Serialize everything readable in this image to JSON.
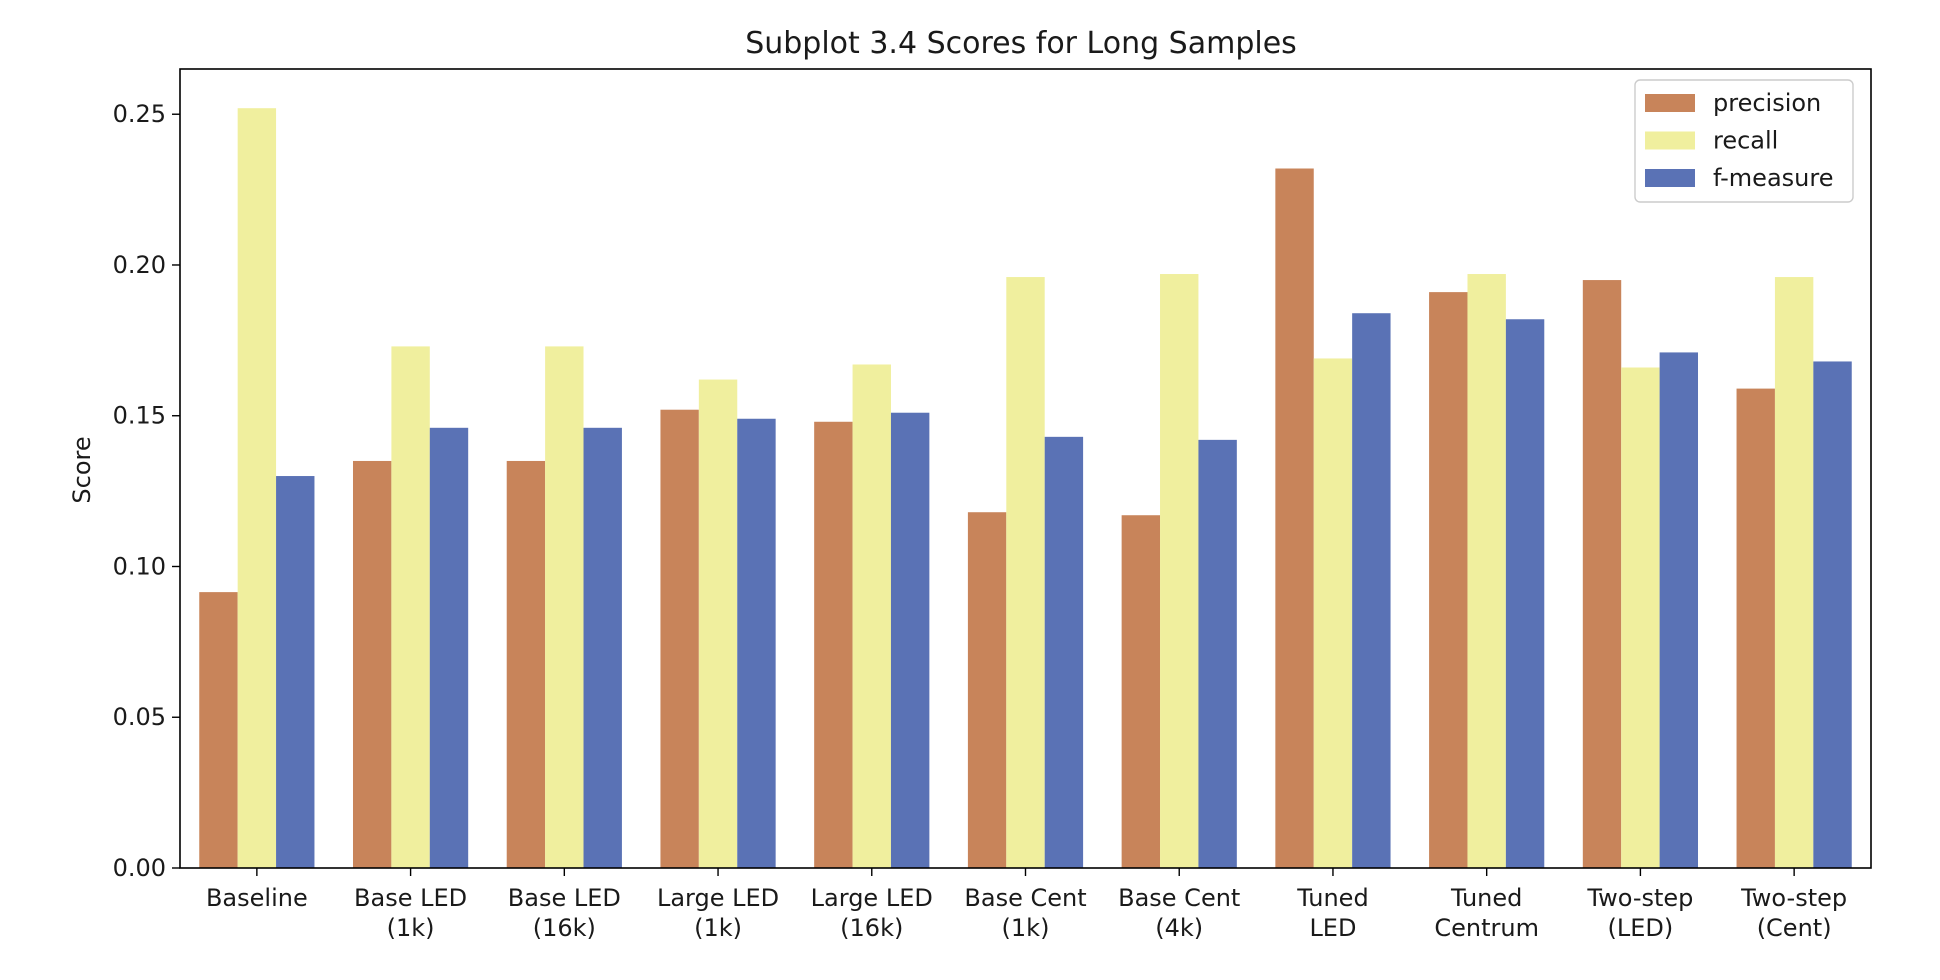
{
  "chart_data": {
    "type": "bar",
    "title": "Subplot 3.4 Scores for Long Samples",
    "xlabel": "",
    "ylabel": "Score",
    "ylim": [
      0,
      0.265
    ],
    "yticks": [
      0.0,
      0.05,
      0.1,
      0.15,
      0.2,
      0.25
    ],
    "ytick_labels": [
      "0.00",
      "0.05",
      "0.10",
      "0.15",
      "0.20",
      "0.25"
    ],
    "grid": false,
    "legend_position": "top-right",
    "categories": [
      [
        "Baseline"
      ],
      [
        "Base LED",
        "(1k)"
      ],
      [
        "Base LED",
        "(16k)"
      ],
      [
        "Large LED",
        "(1k)"
      ],
      [
        "Large LED",
        "(16k)"
      ],
      [
        "Base Cent",
        "(1k)"
      ],
      [
        "Base Cent",
        "(4k)"
      ],
      [
        "Tuned",
        "LED"
      ],
      [
        "Tuned",
        "Centrum"
      ],
      [
        "Two-step",
        "(LED)"
      ],
      [
        "Two-step",
        "(Cent)"
      ]
    ],
    "series": [
      {
        "name": "precision",
        "color": "#c8845a",
        "values": [
          0.0915,
          0.135,
          0.135,
          0.152,
          0.148,
          0.118,
          0.117,
          0.232,
          0.191,
          0.195,
          0.159
        ]
      },
      {
        "name": "recall",
        "color": "#f0ef9e",
        "values": [
          0.252,
          0.173,
          0.173,
          0.162,
          0.167,
          0.196,
          0.197,
          0.169,
          0.197,
          0.166,
          0.196
        ]
      },
      {
        "name": "f-measure",
        "color": "#5a72b5",
        "values": [
          0.13,
          0.146,
          0.146,
          0.149,
          0.151,
          0.143,
          0.142,
          0.184,
          0.182,
          0.171,
          0.168
        ]
      }
    ]
  }
}
